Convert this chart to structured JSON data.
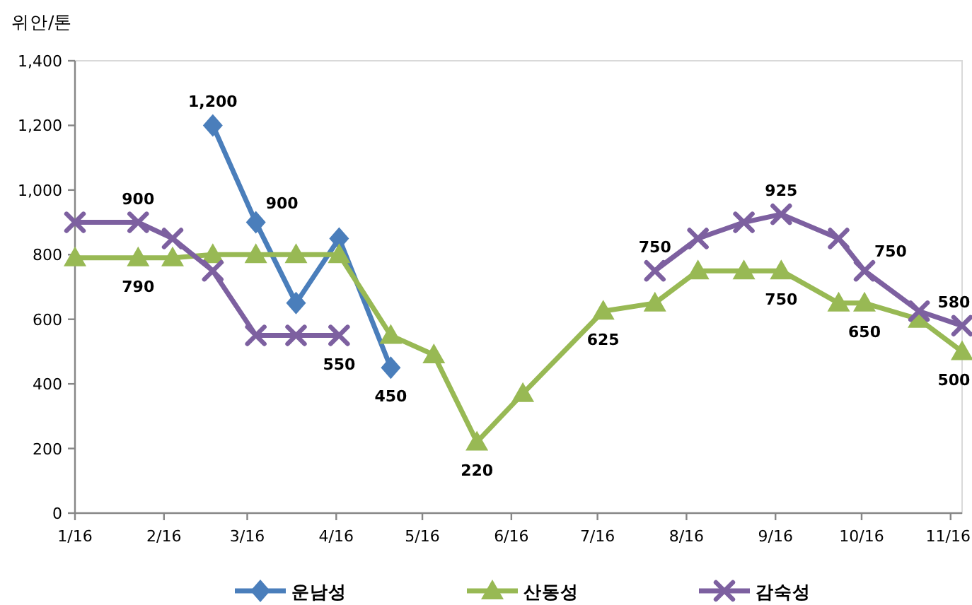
{
  "chart_data": {
    "type": "line",
    "ylabel": "위안/톤",
    "x": [
      "2016-01-01",
      "2016-01-23",
      "2016-02-04",
      "2016-02-18",
      "2016-03-04",
      "2016-03-18",
      "2016-04-02",
      "2016-04-20",
      "2016-05-05",
      "2016-05-20",
      "2016-06-05",
      "2016-07-03",
      "2016-07-21",
      "2016-08-05",
      "2016-08-21",
      "2016-09-03",
      "2016-09-23",
      "2016-10-02",
      "2016-10-21",
      "2016-11-05"
    ],
    "xlim": [
      "2016-01-01",
      "2016-11-05"
    ],
    "xticks": [
      {
        "value": "2016-01",
        "label": "1/16"
      },
      {
        "value": "2016-02",
        "label": "2/16"
      },
      {
        "value": "2016-03",
        "label": "3/16"
      },
      {
        "value": "2016-04",
        "label": "4/16"
      },
      {
        "value": "2016-05",
        "label": "5/16"
      },
      {
        "value": "2016-06",
        "label": "6/16"
      },
      {
        "value": "2016-07",
        "label": "7/16"
      },
      {
        "value": "2016-08",
        "label": "8/16"
      },
      {
        "value": "2016-09",
        "label": "9/16"
      },
      {
        "value": "2016-10",
        "label": "10/16"
      },
      {
        "value": "2016-11",
        "label": "11/16"
      }
    ],
    "ylim": [
      0,
      1400
    ],
    "yticks": [
      0,
      200,
      400,
      600,
      800,
      {
        "value": 1000,
        "label": "1,000"
      },
      {
        "value": 1200,
        "label": "1,200"
      },
      {
        "value": 1400,
        "label": "1,400"
      }
    ],
    "legend": "bottom",
    "line_style": "solid",
    "series": [
      {
        "name": "운남성",
        "color": "#4A7EBB",
        "marker": "diamond",
        "values": [
          null,
          null,
          null,
          1200,
          900,
          650,
          850,
          450,
          null,
          null,
          null,
          null,
          null,
          null,
          null,
          null,
          null,
          null,
          null,
          null
        ],
        "value_labels": [
          null,
          null,
          null,
          "1,200",
          "900",
          null,
          null,
          "450",
          null,
          null,
          null,
          null,
          null,
          null,
          null,
          null,
          null,
          null,
          null,
          null
        ]
      },
      {
        "name": "산동성",
        "color": "#98B954",
        "marker": "triangle",
        "values": [
          790,
          790,
          790,
          800,
          800,
          800,
          800,
          550,
          490,
          220,
          370,
          625,
          650,
          750,
          750,
          750,
          650,
          650,
          600,
          500
        ],
        "value_labels": [
          null,
          "790",
          null,
          null,
          null,
          null,
          null,
          null,
          null,
          "220",
          null,
          "625",
          null,
          null,
          null,
          "750",
          null,
          "650",
          null,
          "500"
        ]
      },
      {
        "name": "감숙성",
        "color": "#7D60A0",
        "marker": "cross",
        "values": [
          900,
          900,
          850,
          750,
          550,
          550,
          550,
          null,
          null,
          null,
          null,
          null,
          750,
          850,
          900,
          925,
          850,
          750,
          625,
          580
        ],
        "value_labels": [
          null,
          "900",
          null,
          null,
          null,
          null,
          "550",
          null,
          null,
          null,
          null,
          null,
          "750",
          null,
          null,
          "925",
          null,
          "750",
          null,
          "580"
        ]
      }
    ]
  }
}
